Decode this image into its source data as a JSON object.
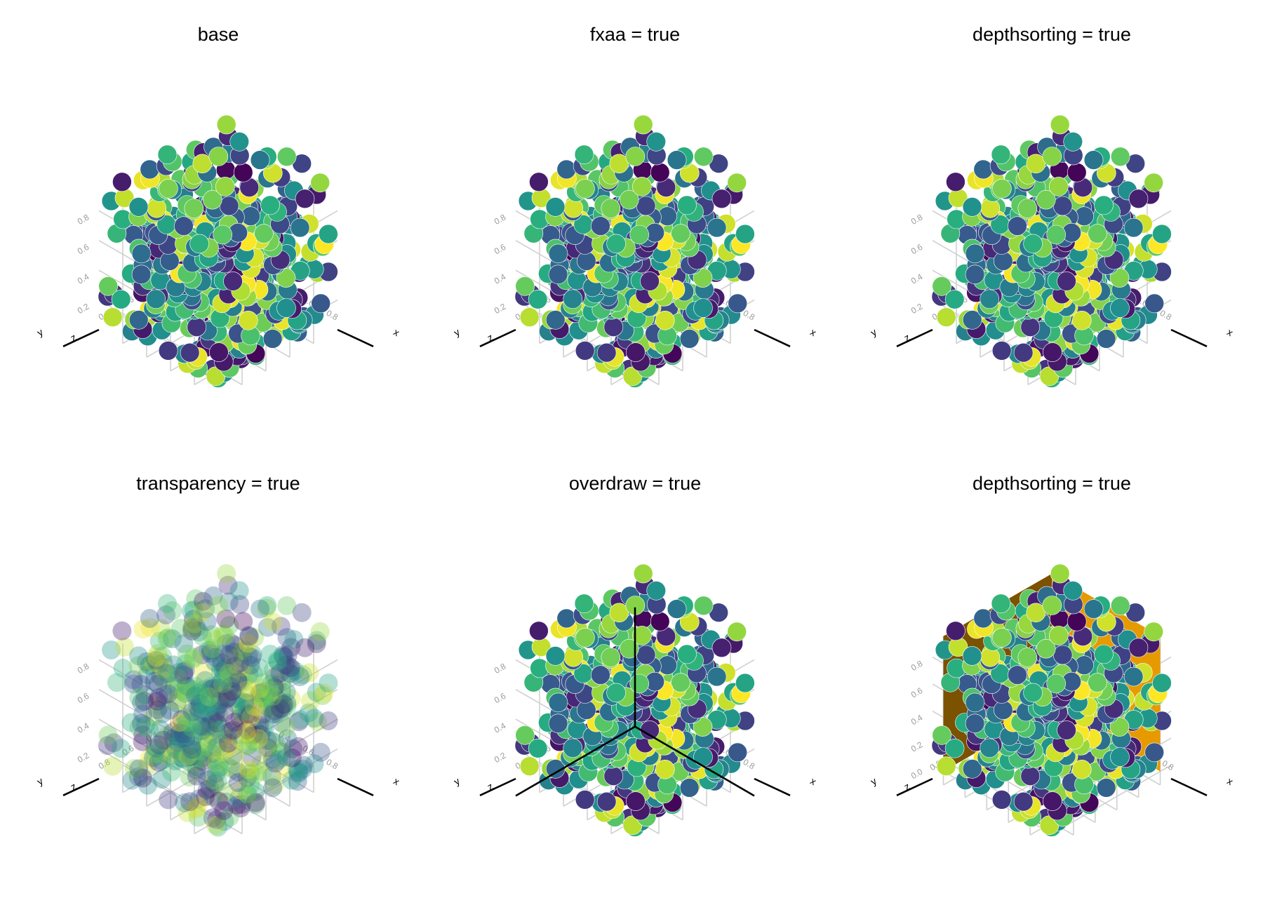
{
  "chart_data": [
    {
      "type": "scatter3d",
      "title": "base",
      "axes": {
        "x": "x",
        "y": "y",
        "z": "z"
      },
      "ticks": [
        "0.2",
        "0.4",
        "0.6",
        "0.8"
      ],
      "limits": [
        0,
        1
      ],
      "markers": {
        "count": 500,
        "colormap": "viridis",
        "opacity": 1.0
      },
      "inner_axes": false,
      "mesh": null
    },
    {
      "type": "scatter3d",
      "title": "fxaa = true",
      "axes": {
        "x": "x",
        "y": "y",
        "z": "z"
      },
      "ticks": [
        "0.2",
        "0.4",
        "0.6",
        "0.8"
      ],
      "limits": [
        0,
        1
      ],
      "markers": {
        "count": 500,
        "colormap": "viridis",
        "opacity": 1.0
      },
      "inner_axes": false,
      "mesh": null
    },
    {
      "type": "scatter3d",
      "title": "depthsorting = true",
      "axes": {
        "x": "x",
        "y": "y",
        "z": "z"
      },
      "ticks": [
        "0.2",
        "0.4",
        "0.6",
        "0.8"
      ],
      "limits": [
        0,
        1
      ],
      "markers": {
        "count": 500,
        "colormap": "viridis",
        "opacity": 1.0
      },
      "inner_axes": false,
      "mesh": null
    },
    {
      "type": "scatter3d",
      "title": "transparency = true",
      "axes": {
        "x": "x",
        "y": "y",
        "z": "z"
      },
      "ticks": [
        "0.2",
        "0.4",
        "0.6",
        "0.8"
      ],
      "limits": [
        0,
        1
      ],
      "markers": {
        "count": 500,
        "colormap": "viridis",
        "opacity": 0.35
      },
      "inner_axes": false,
      "mesh": null
    },
    {
      "type": "scatter3d",
      "title": "overdraw = true",
      "axes": {
        "x": "x",
        "y": "y",
        "z": "z"
      },
      "ticks": [
        "0.2",
        "0.4",
        "0.6",
        "0.8"
      ],
      "limits": [
        0,
        1
      ],
      "markers": {
        "count": 500,
        "colormap": "viridis",
        "opacity": 1.0
      },
      "inner_axes": true,
      "mesh": null
    },
    {
      "type": "scatter3d",
      "title": "depthsorting = true",
      "axes": {
        "x": "x",
        "y": "y",
        "z": "z"
      },
      "ticks": [
        "0.0",
        "0.2",
        "0.4",
        "0.6",
        "0.8"
      ],
      "limits": [
        -0.1,
        1
      ],
      "markers": {
        "count": 500,
        "colormap": "viridis",
        "opacity": 1.0
      },
      "inner_axes": false,
      "mesh": {
        "shape": "box",
        "from": [
          0,
          0,
          0
        ],
        "to": [
          1,
          1,
          1
        ],
        "color": "#e69a00",
        "shade_dark": "#7a5200"
      }
    }
  ],
  "colors": {
    "viridis": [
      "#440154",
      "#472c7a",
      "#3b518b",
      "#2c718e",
      "#21908d",
      "#27ad81",
      "#5cc863",
      "#aadc32",
      "#fde725"
    ],
    "grid": "#d0d0d0",
    "axis": "#000000",
    "tick_text": "#9a9a9a"
  }
}
